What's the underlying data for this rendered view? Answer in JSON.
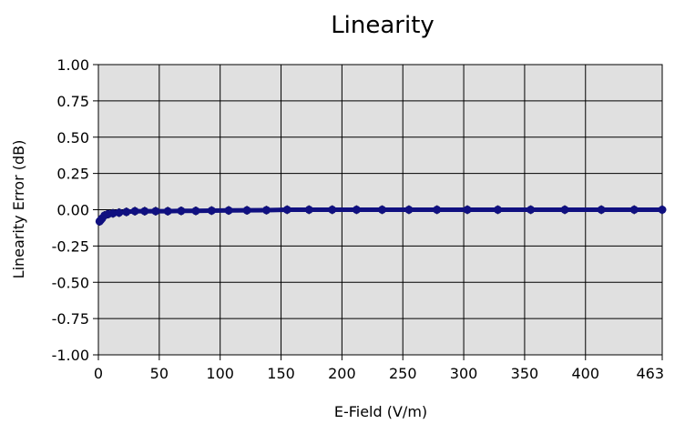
{
  "chart_data": {
    "type": "scatter",
    "title": "Linearity",
    "xlabel": "E-Field (V/m)",
    "ylabel": "Linearity Error (dB)",
    "xlim": [
      0,
      463
    ],
    "ylim": [
      -1.0,
      1.0
    ],
    "xticks": [
      0,
      50,
      100,
      150,
      200,
      250,
      300,
      350,
      400,
      463
    ],
    "xtick_labels": [
      "0",
      "50",
      "100",
      "150",
      "200",
      "250",
      "300",
      "350",
      "400",
      "463"
    ],
    "yticks": [
      1.0,
      0.75,
      0.5,
      0.25,
      0.0,
      -0.25,
      -0.5,
      -0.75,
      -1.0
    ],
    "ytick_labels": [
      "1.00",
      "0.75",
      "0.50",
      "0.25",
      "0.00",
      "-0.25",
      "-0.50",
      "-0.75",
      "-1.00"
    ],
    "grid": true,
    "series": [
      {
        "color": "#101080",
        "x": [
          1,
          2,
          3,
          5,
          8,
          12,
          17,
          23,
          30,
          38,
          47,
          57,
          68,
          80,
          93,
          107,
          122,
          138,
          155,
          173,
          192,
          212,
          233,
          255,
          278,
          303,
          328,
          355,
          383,
          413,
          440,
          463
        ],
        "y": [
          -0.08,
          -0.07,
          -0.06,
          -0.04,
          -0.03,
          -0.025,
          -0.02,
          -0.015,
          -0.01,
          -0.01,
          -0.01,
          -0.01,
          -0.008,
          -0.008,
          -0.006,
          -0.005,
          -0.004,
          -0.003,
          0.0,
          0.0,
          0.0,
          0.0,
          0.0,
          0.0,
          0.0,
          0.0,
          0.0,
          0.0,
          0.0,
          0.0,
          0.0,
          0.0
        ],
        "error": [
          0.03,
          0.03,
          0.03,
          0.03,
          0.03,
          0.03,
          0.03,
          0.03,
          0.03,
          0.03,
          0.03,
          0.03,
          0.03,
          0.03,
          0.03,
          0.03,
          0.03,
          0.03,
          0.03,
          0.03,
          0.03,
          0.03,
          0.03,
          0.03,
          0.03,
          0.03,
          0.03,
          0.03,
          0.03,
          0.03,
          0.03,
          0.03
        ]
      }
    ]
  }
}
